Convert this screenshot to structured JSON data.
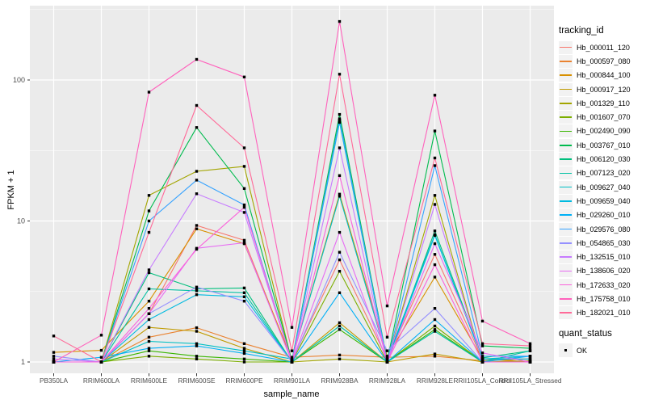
{
  "figure": {
    "background": "#FFFFFF",
    "panel_background": "#EBEBEB",
    "gridline_color": "#FFFFFF",
    "axis_text_color": "#4D4D4D",
    "tick_mark_color": "#333333",
    "point_color": "#000000"
  },
  "axes": {
    "y": {
      "title": "FPKM + 1",
      "scale": "log10",
      "tick_labels": [
        "1",
        "10",
        "100"
      ],
      "tick_values": [
        1,
        10,
        100
      ],
      "minor_tick_values": [
        3.1623,
        31.623,
        316.23
      ]
    },
    "x": {
      "title": "sample_name"
    }
  },
  "legend": {
    "tracking": {
      "title": "tracking_id"
    },
    "quant": {
      "title": "quant_status",
      "items": [
        {
          "label": "OK",
          "shape": "black-square"
        }
      ]
    }
  },
  "chart_data": {
    "type": "line",
    "title": "",
    "xlabel": "sample_name",
    "ylabel": "FPKM + 1",
    "y_scale": "log10",
    "ylim": [
      0.83,
      340
    ],
    "grid": true,
    "legend_position": "right",
    "point_marker": "square",
    "categories": [
      "PB350LA",
      "RRIM600LA",
      "RRIM600LE",
      "RRIM600SE",
      "RRIM600PE",
      "RRIM901LA",
      "RRIM928BA",
      "RRIM928LA",
      "RRIM928LE",
      "RRII105LA_Control",
      "RRII105LA_Stressed"
    ],
    "series": [
      {
        "name": "Hb_000011_120",
        "color": "#F8766D",
        "values": [
          1.0,
          1.0,
          2.2,
          9.3,
          7.3,
          1.02,
          5.3,
          1.05,
          5.8,
          1.05,
          1.05
        ]
      },
      {
        "name": "Hb_000597_080",
        "color": "#EA8331",
        "values": [
          1.0,
          1.0,
          1.5,
          1.75,
          1.35,
          1.08,
          1.12,
          1.08,
          1.1,
          1.02,
          1.05
        ]
      },
      {
        "name": "Hb_000844_100",
        "color": "#D89000",
        "values": [
          1.17,
          1.21,
          2.7,
          8.8,
          6.9,
          1.05,
          15.5,
          1.1,
          4.0,
          1.05,
          1.0
        ]
      },
      {
        "name": "Hb_000917_120",
        "color": "#C09B00",
        "values": [
          1.0,
          1.0,
          1.76,
          1.65,
          1.25,
          1.0,
          1.9,
          1.0,
          1.14,
          1.0,
          1.0
        ]
      },
      {
        "name": "Hb_001329_110",
        "color": "#A3A500",
        "values": [
          1.0,
          1.0,
          15.2,
          22.5,
          24.4,
          1.0,
          1.05,
          1.0,
          15.2,
          1.0,
          1.02
        ]
      },
      {
        "name": "Hb_001607_070",
        "color": "#7CAE00",
        "values": [
          1.0,
          1.0,
          1.1,
          1.05,
          1.0,
          1.0,
          4.4,
          1.0,
          1.8,
          1.0,
          1.0
        ]
      },
      {
        "name": "Hb_002490_090",
        "color": "#39B600",
        "values": [
          1.0,
          1.0,
          1.2,
          1.1,
          1.05,
          1.0,
          1.7,
          1.0,
          1.7,
          1.0,
          1.0
        ]
      },
      {
        "name": "Hb_003767_010",
        "color": "#00BB4E",
        "values": [
          1.0,
          1.0,
          11.8,
          46.0,
          17.0,
          1.02,
          57.0,
          1.02,
          43.5,
          1.3,
          1.25
        ]
      },
      {
        "name": "Hb_006120_030",
        "color": "#00BF7D",
        "values": [
          1.0,
          1.0,
          4.3,
          3.3,
          3.35,
          1.0,
          53.0,
          1.0,
          8.5,
          1.07,
          1.2
        ]
      },
      {
        "name": "Hb_007123_020",
        "color": "#00C1A3",
        "values": [
          1.0,
          1.0,
          3.3,
          3.2,
          3.1,
          1.0,
          1.8,
          1.0,
          1.65,
          1.0,
          1.2
        ]
      },
      {
        "name": "Hb_009627_040",
        "color": "#00BFC4",
        "values": [
          1.0,
          1.0,
          1.4,
          1.35,
          1.2,
          1.05,
          15.0,
          1.05,
          8.0,
          1.05,
          1.1
        ]
      },
      {
        "name": "Hb_009659_040",
        "color": "#00BAE0",
        "values": [
          1.0,
          1.0,
          2.0,
          3.0,
          2.9,
          1.0,
          50.0,
          1.0,
          7.9,
          1.05,
          1.05
        ]
      },
      {
        "name": "Hb_029260_010",
        "color": "#00B0F6",
        "values": [
          1.0,
          1.08,
          1.25,
          1.3,
          1.15,
          1.0,
          3.1,
          1.0,
          2.0,
          1.0,
          1.1
        ]
      },
      {
        "name": "Hb_029576_080",
        "color": "#35A2FF",
        "values": [
          1.0,
          1.0,
          10.0,
          19.5,
          13.0,
          1.0,
          52.0,
          1.0,
          24.7,
          1.1,
          1.1
        ]
      },
      {
        "name": "Hb_054865_030",
        "color": "#9590FF",
        "values": [
          1.1,
          1.0,
          2.2,
          3.4,
          2.7,
          1.0,
          6.0,
          1.2,
          2.4,
          1.0,
          1.0
        ]
      },
      {
        "name": "Hb_132515_010",
        "color": "#C77CFF",
        "values": [
          1.05,
          1.0,
          4.5,
          15.6,
          11.5,
          1.0,
          33.0,
          1.0,
          13.1,
          1.0,
          1.0
        ]
      },
      {
        "name": "Hb_138606_020",
        "color": "#E76BF3",
        "values": [
          1.0,
          1.0,
          2.2,
          6.4,
          7.0,
          1.0,
          8.3,
          1.0,
          6.9,
          1.16,
          1.0
        ]
      },
      {
        "name": "Hb_172633_020",
        "color": "#FA62DB",
        "values": [
          1.0,
          1.0,
          2.4,
          6.3,
          12.5,
          1.0,
          21.0,
          1.0,
          4.9,
          1.0,
          1.0
        ]
      },
      {
        "name": "Hb_175758_010",
        "color": "#FF62BC",
        "values": [
          1.0,
          1.55,
          82.0,
          140.0,
          105.0,
          1.76,
          260.0,
          2.5,
          78.0,
          1.95,
          1.35
        ]
      },
      {
        "name": "Hb_182021_010",
        "color": "#FF6A98",
        "values": [
          1.53,
          1.0,
          8.3,
          66.0,
          33.0,
          1.2,
          110.0,
          1.5,
          28.0,
          1.35,
          1.3
        ]
      }
    ]
  }
}
